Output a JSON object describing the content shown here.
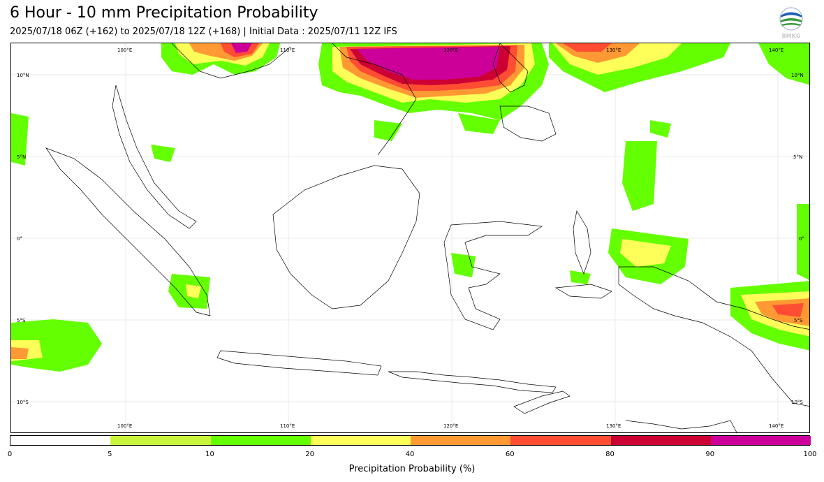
{
  "header": {
    "title": "6 Hour - 10 mm Precipitation Probability",
    "subtitle": "2025/07/18 06Z (+162) to 2025/07/18 12Z (+168) | Initial Data : 2025/07/11 12Z IFS",
    "logo_text": "BMKG"
  },
  "map": {
    "lon_labels": [
      "100°E",
      "110°E",
      "120°E",
      "130°E",
      "140°E"
    ],
    "lat_labels": [
      "10°N",
      "5°N",
      "0°",
      "5°S",
      "10°S"
    ],
    "extent": {
      "lon": [
        93,
        142
      ],
      "lat": [
        -12,
        12
      ]
    },
    "land_color": "#ffffff",
    "coast_color": "#000000"
  },
  "colorbar": {
    "label": "Precipitation Probability (%)",
    "ticks": [
      "0",
      "5",
      "10",
      "20",
      "40",
      "60",
      "80",
      "90",
      "100"
    ],
    "colors": [
      "#ffffff",
      "#c8f53a",
      "#64ff00",
      "#ffff5a",
      "#ff9933",
      "#ff4d33",
      "#cc0033",
      "#cc0099"
    ]
  }
}
